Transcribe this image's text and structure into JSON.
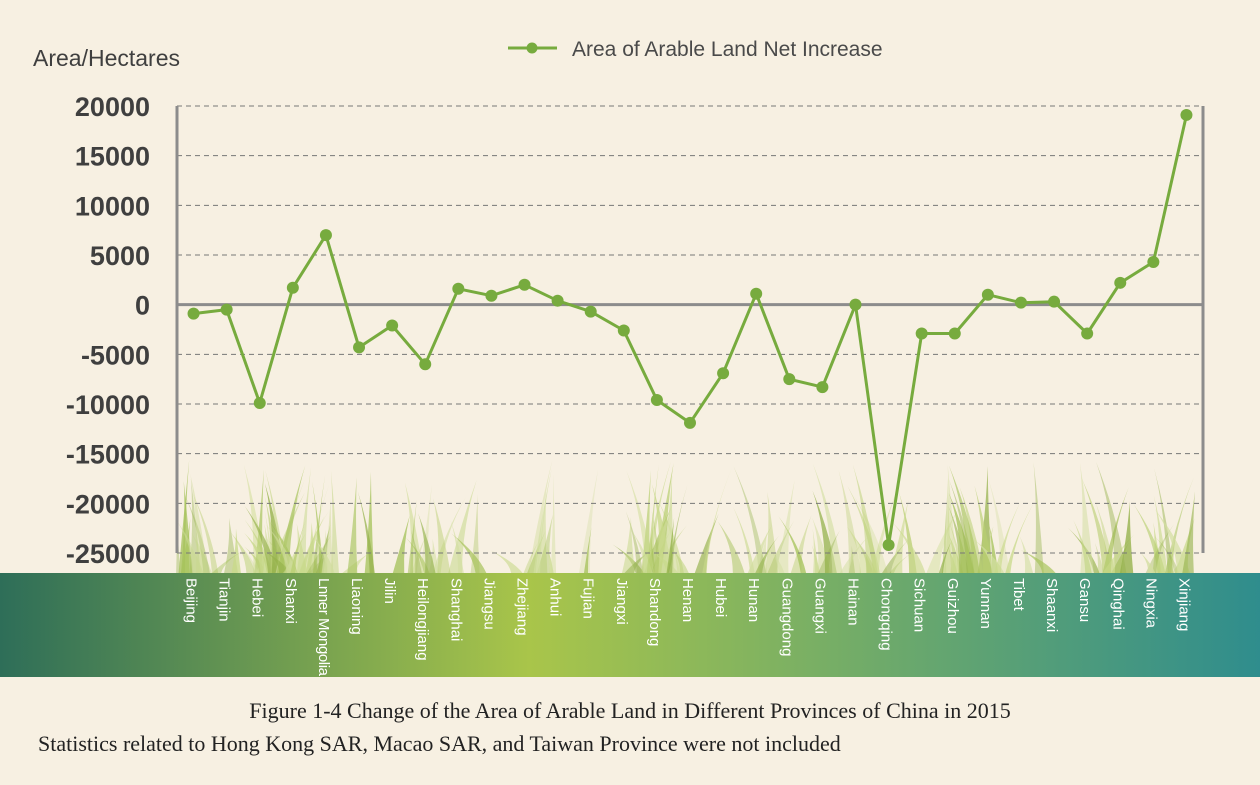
{
  "chart_data": {
    "type": "line",
    "title": "",
    "xlabel": "",
    "ylabel": "Area/Hectares",
    "ylim": [
      -25000,
      20000
    ],
    "yticks": [
      20000,
      15000,
      10000,
      5000,
      0,
      -5000,
      -10000,
      -15000,
      -20000,
      -25000
    ],
    "grid": "dashed horizontal",
    "legend_position": "top",
    "categories": [
      "Beijing",
      "Tianjin",
      "Hebei",
      "Shanxi",
      "Lnner Mongolia",
      "Liaoning",
      "Jilin",
      "Heilongjiang",
      "Shanghai",
      "Jiangsu",
      "Zhejiang",
      "Anhui",
      "Fujian",
      "Jiangxi",
      "Shandong",
      "Henan",
      "Hubei",
      "Hunan",
      "Guangdong",
      "Guangxi",
      "Hainan",
      "Chongqing",
      "Sichuan",
      "Guizhou",
      "Yunnan",
      "Tibet",
      "Shaanxi",
      "Gansu",
      "Qinghai",
      "Ningxia",
      "Xinjiang"
    ],
    "series": [
      {
        "name": "Area of Arable Land Net Increase",
        "color": "#77ab3e",
        "values": [
          -900,
          -500,
          -9900,
          1700,
          7000,
          -4300,
          -2100,
          -6000,
          1600,
          900,
          2000,
          400,
          -700,
          -2600,
          -9600,
          -11900,
          -6900,
          1100,
          -7500,
          -8300,
          0,
          -24200,
          -2900,
          -2900,
          1000,
          200,
          300,
          -2900,
          2200,
          4300,
          19100
        ]
      }
    ]
  },
  "captions": {
    "figure": "Figure 1-4 Change of the Area of Arable Land in Different Provinces of China in 2015",
    "note": "Statistics related to Hong Kong SAR, Macao SAR, and Taiwan Province were not included"
  },
  "colors": {
    "background": "#f7f0e2",
    "line": "#77ab3e",
    "axis": "#8c8c8c",
    "grid": "#777777",
    "tick_text": "#3f3f3f",
    "band_left": "#2e6e58",
    "band_center": "#a9c54a",
    "band_right": "#2f8d8d"
  }
}
